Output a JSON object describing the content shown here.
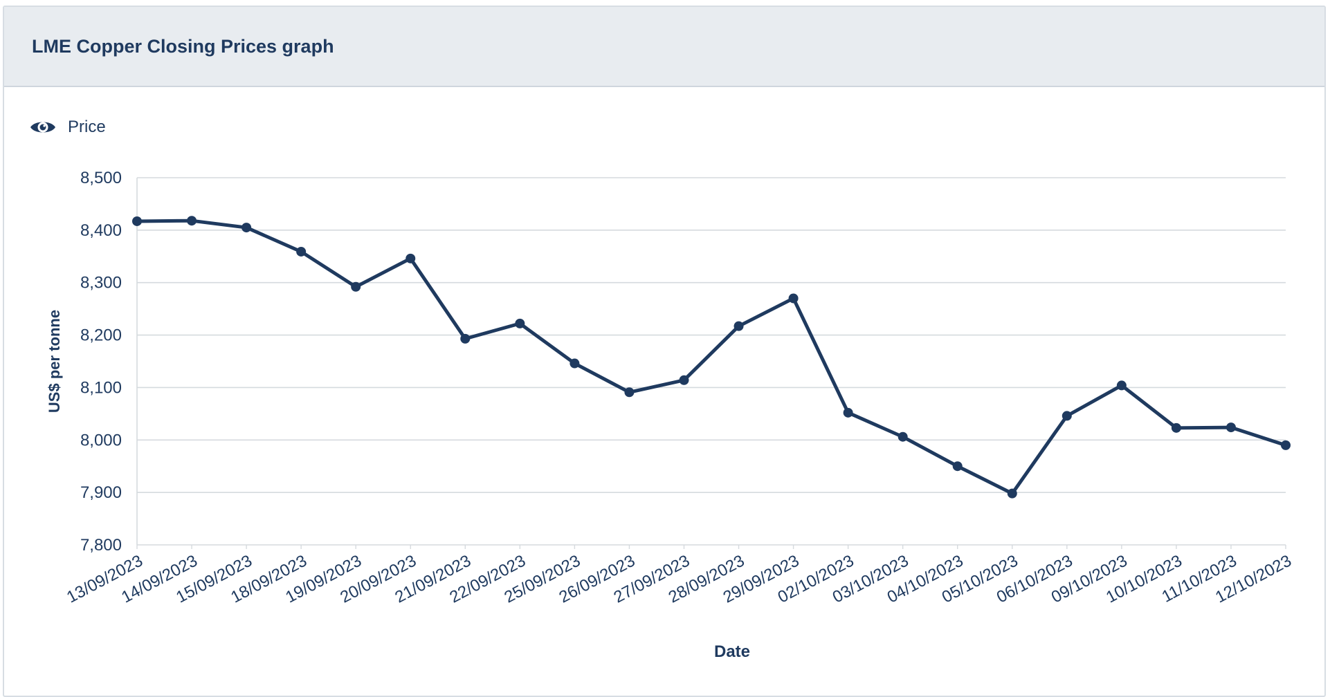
{
  "card": {
    "title": "LME Copper Closing Prices graph"
  },
  "legend": {
    "icon": "eye-icon",
    "label": "Price"
  },
  "colors": {
    "series": "#1f3a5f",
    "grid": "#d5dade",
    "axis_text": "#1f3a5f"
  },
  "chart_data": {
    "type": "line",
    "title": "LME Copper Closing Prices graph",
    "xlabel": "Date",
    "ylabel": "US$ per tonne",
    "ylim": [
      7800,
      8500
    ],
    "yticks": [
      "7,800",
      "7,900",
      "8,000",
      "8,100",
      "8,200",
      "8,300",
      "8,400",
      "8,500"
    ],
    "grid": true,
    "legend_position": "top-left",
    "categories": [
      "13/09/2023",
      "14/09/2023",
      "15/09/2023",
      "18/09/2023",
      "19/09/2023",
      "20/09/2023",
      "21/09/2023",
      "22/09/2023",
      "25/09/2023",
      "26/09/2023",
      "27/09/2023",
      "28/09/2023",
      "29/09/2023",
      "02/10/2023",
      "03/10/2023",
      "04/10/2023",
      "05/10/2023",
      "06/10/2023",
      "09/10/2023",
      "10/10/2023",
      "11/10/2023",
      "12/10/2023"
    ],
    "series": [
      {
        "name": "Price",
        "values": [
          8417,
          8418,
          8405,
          8359,
          8292,
          8346,
          8193,
          8222,
          8146,
          8091,
          8114,
          8217,
          8270,
          8052,
          8006,
          7950,
          7898,
          8046,
          8104,
          8023,
          8024,
          7990
        ]
      }
    ]
  }
}
